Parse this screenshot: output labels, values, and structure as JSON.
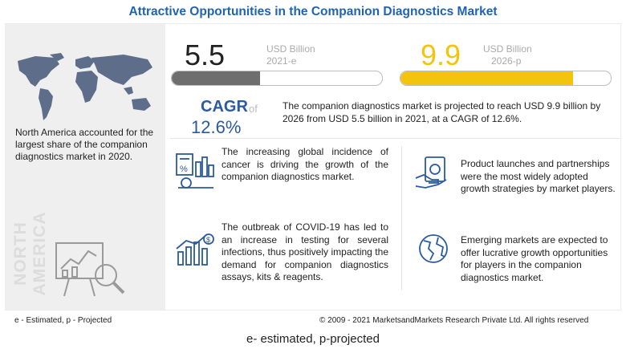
{
  "title": "Attractive Opportunities in the Companion Diagnostics Market",
  "region": {
    "text": "North America accounted for the largest share of the companion diagnostics market in 2020.",
    "vertical_label": "NORTH AMERICA"
  },
  "market": {
    "start": {
      "value": "5.5",
      "unit": "USD Billion",
      "year": "2021-e",
      "fill_fraction": 0.42
    },
    "end": {
      "value": "9.9",
      "unit": "USD Billion",
      "year": "2026-p",
      "fill_fraction": 0.82
    }
  },
  "cagr": {
    "label": "CAGR",
    "of": "of",
    "value": "12.6%"
  },
  "summary": "The companion diagnostics  market is projected to reach USD 9.9 billion by 2026 from USD 5.5 billion  in 2021, at a CAGR of 12.6%.",
  "insights": [
    {
      "text": "The increasing global incidence of cancer is driving the growth of the companion diagnostics market.",
      "icon": "cancer-stats-icon"
    },
    {
      "text": "The outbreak of COVID-19 has led to an increase in testing for several infections, thus positively impacting the demand for companion diagnostics assays, kits & reagents.",
      "icon": "growth-chart-icon"
    },
    {
      "text": "Product launches and partnerships  were the most widely adopted growth strategies by market players.",
      "icon": "money-hand-icon"
    },
    {
      "text": "Emerging markets are expected to offer lucrative growth opportunities for players in the companion diagnostics  market.",
      "icon": "globe-icon"
    }
  ],
  "footer": {
    "legend": "e - Estimated, p - Projected",
    "copyright": "© 2009 - 2021 MarketsandMarkets Research Private Ltd. All rights reserved"
  },
  "caption": "e- estimated, p-projected",
  "colors": {
    "title": "#1f63b5",
    "accent_yellow": "#f2c40c",
    "bar_gray": "#6e6e6e",
    "cagr_blue": "#2a5aa0",
    "map_blue": "#5e6e8a"
  }
}
